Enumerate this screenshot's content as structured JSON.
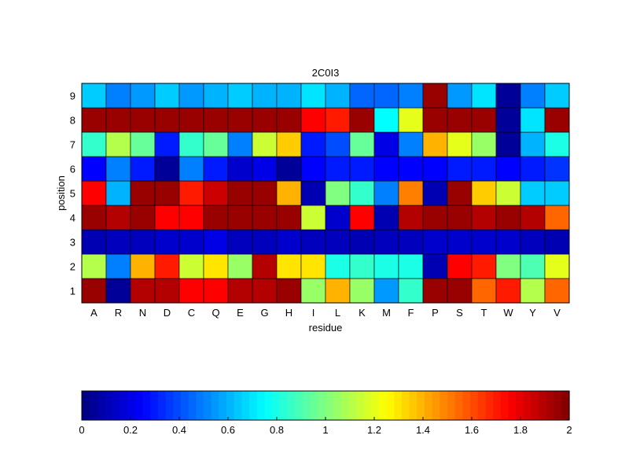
{
  "chart_data": {
    "type": "heatmap",
    "title": "2C0I3",
    "xlabel": "residue",
    "ylabel": "position",
    "x_categories": [
      "A",
      "R",
      "N",
      "D",
      "C",
      "Q",
      "E",
      "G",
      "H",
      "I",
      "L",
      "K",
      "M",
      "F",
      "P",
      "S",
      "T",
      "W",
      "Y",
      "V"
    ],
    "y_categories": [
      "1",
      "2",
      "3",
      "4",
      "5",
      "6",
      "7",
      "8",
      "9"
    ],
    "values": [
      [
        1.95,
        0.05,
        1.9,
        1.9,
        1.75,
        1.75,
        1.9,
        1.9,
        1.95,
        1.05,
        1.4,
        1.05,
        0.55,
        0.85,
        1.95,
        1.95,
        1.55,
        1.7,
        1.1,
        1.55
      ],
      [
        1.1,
        0.5,
        1.4,
        1.7,
        1.15,
        1.3,
        1.05,
        1.9,
        1.3,
        1.3,
        0.8,
        0.85,
        0.8,
        0.8,
        0.1,
        1.75,
        1.7,
        1.0,
        0.9,
        1.2
      ],
      [
        0.1,
        0.12,
        0.12,
        0.15,
        0.15,
        0.2,
        0.12,
        0.12,
        0.15,
        0.12,
        0.12,
        0.1,
        0.12,
        0.12,
        0.15,
        0.15,
        0.15,
        0.15,
        0.12,
        0.1
      ],
      [
        1.95,
        1.9,
        1.95,
        1.75,
        1.75,
        1.95,
        1.95,
        1.95,
        1.95,
        1.15,
        0.15,
        1.75,
        0.1,
        1.9,
        1.95,
        1.95,
        1.9,
        1.95,
        1.9,
        1.55
      ],
      [
        1.75,
        0.6,
        1.95,
        1.95,
        1.7,
        1.85,
        1.95,
        1.95,
        1.4,
        0.1,
        1.0,
        0.85,
        0.5,
        1.5,
        0.1,
        1.95,
        1.35,
        1.15,
        0.65,
        0.65
      ],
      [
        0.25,
        0.5,
        0.3,
        0.05,
        0.5,
        0.3,
        0.15,
        0.2,
        0.05,
        0.25,
        0.3,
        0.3,
        0.25,
        0.25,
        0.25,
        0.3,
        0.3,
        0.25,
        0.3,
        0.35
      ],
      [
        0.85,
        1.1,
        0.95,
        0.3,
        0.85,
        0.95,
        0.5,
        1.15,
        1.35,
        0.3,
        0.4,
        0.95,
        0.2,
        0.5,
        1.4,
        1.2,
        1.05,
        0.05,
        0.6,
        0.8
      ],
      [
        1.95,
        1.95,
        1.95,
        1.95,
        1.95,
        1.95,
        1.95,
        1.95,
        1.95,
        1.75,
        1.7,
        1.95,
        0.75,
        1.2,
        1.95,
        1.95,
        1.95,
        0.05,
        0.7,
        1.95
      ],
      [
        0.65,
        0.5,
        0.55,
        0.65,
        0.55,
        0.6,
        0.65,
        0.6,
        0.6,
        0.7,
        0.6,
        0.45,
        0.45,
        0.5,
        1.95,
        0.55,
        0.7,
        0.05,
        0.5,
        0.65
      ]
    ],
    "colorbar": {
      "colormap": "jet",
      "range": [
        0,
        2
      ],
      "ticks": [
        "0",
        "0.2",
        "0.4",
        "0.6",
        "0.8",
        "1",
        "1.2",
        "1.4",
        "1.6",
        "1.8",
        "2"
      ],
      "orientation": "horizontal"
    },
    "grid": false
  }
}
